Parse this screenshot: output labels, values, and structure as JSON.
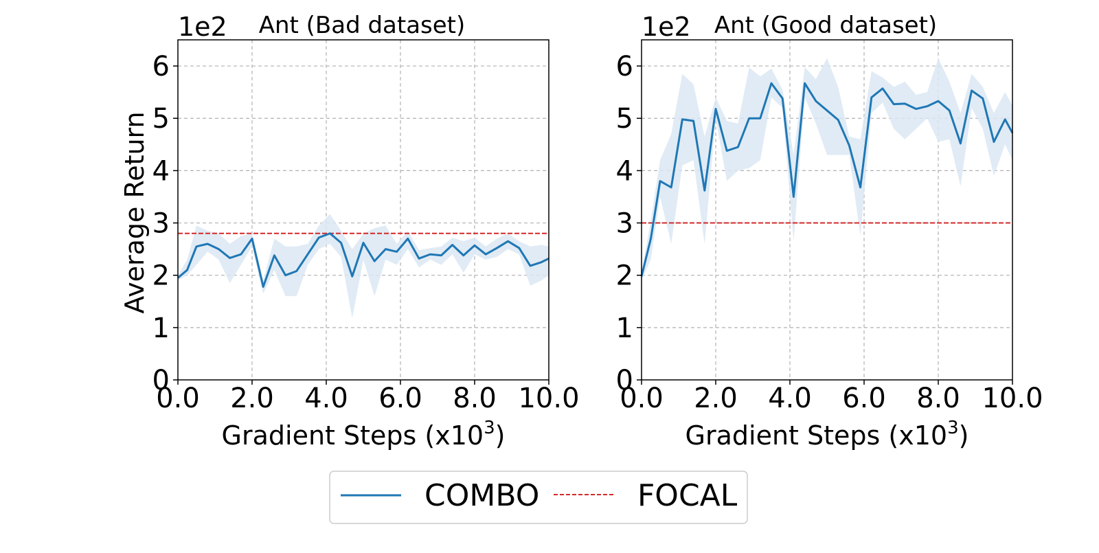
{
  "chart_data": [
    {
      "type": "line",
      "title": "Ant (Bad dataset)",
      "scale_label": "1e2",
      "xlabel": "Gradient Steps (x10",
      "xlabel_superscript": "3",
      "xlabel_suffix": ")",
      "ylabel": "Average Return",
      "xlim": [
        0,
        10
      ],
      "ylim": [
        0,
        6.5
      ],
      "xticks": [
        0,
        2,
        4,
        6,
        8,
        10
      ],
      "xtick_labels": [
        "0.0",
        "2.0",
        "4.0",
        "6.0",
        "8.0",
        "10.0"
      ],
      "yticks": [
        0,
        1,
        2,
        3,
        4,
        5,
        6
      ],
      "ytick_labels": [
        "0",
        "1",
        "2",
        "3",
        "4",
        "5",
        "6"
      ],
      "grid": true,
      "series": [
        {
          "name": "COMBO",
          "x": [
            0,
            0.25,
            0.5,
            0.8,
            1.1,
            1.4,
            1.7,
            2.0,
            2.3,
            2.6,
            2.9,
            3.2,
            3.5,
            3.8,
            4.1,
            4.4,
            4.7,
            5.0,
            5.3,
            5.6,
            5.9,
            6.2,
            6.5,
            6.8,
            7.1,
            7.4,
            7.7,
            8.0,
            8.3,
            8.6,
            8.9,
            9.2,
            9.5,
            9.8,
            10.0
          ],
          "y": [
            1.95,
            2.1,
            2.55,
            2.6,
            2.5,
            2.33,
            2.4,
            2.7,
            1.78,
            2.38,
            2.0,
            2.08,
            2.4,
            2.72,
            2.8,
            2.62,
            1.98,
            2.62,
            2.27,
            2.5,
            2.45,
            2.7,
            2.32,
            2.4,
            2.38,
            2.58,
            2.38,
            2.57,
            2.4,
            2.52,
            2.65,
            2.52,
            2.18,
            2.25,
            2.32
          ],
          "lower": [
            1.9,
            2.0,
            2.2,
            2.45,
            2.3,
            1.85,
            2.2,
            2.55,
            1.65,
            2.1,
            1.6,
            1.6,
            2.2,
            2.5,
            2.6,
            2.35,
            1.18,
            2.3,
            1.6,
            2.3,
            2.2,
            2.5,
            2.15,
            2.3,
            2.2,
            2.4,
            2.05,
            2.4,
            2.3,
            2.35,
            2.5,
            2.4,
            1.8,
            1.9,
            2.0
          ],
          "upper": [
            2.0,
            2.3,
            2.95,
            2.85,
            2.8,
            2.6,
            2.75,
            2.8,
            1.9,
            2.7,
            2.55,
            2.55,
            2.6,
            2.95,
            3.17,
            2.85,
            2.5,
            2.8,
            2.9,
            2.95,
            2.6,
            2.85,
            2.48,
            2.52,
            2.55,
            2.72,
            2.65,
            2.72,
            2.55,
            2.7,
            2.8,
            2.65,
            2.55,
            2.58,
            2.55
          ]
        },
        {
          "name": "FOCAL",
          "constant": 2.8
        }
      ]
    },
    {
      "type": "line",
      "title": "Ant (Good dataset)",
      "scale_label": "1e2",
      "xlabel": "Gradient Steps (x10",
      "xlabel_superscript": "3",
      "xlabel_suffix": ")",
      "ylabel": "",
      "xlim": [
        0,
        10
      ],
      "ylim": [
        0,
        6.5
      ],
      "xticks": [
        0,
        2,
        4,
        6,
        8,
        10
      ],
      "xtick_labels": [
        "0.0",
        "2.0",
        "4.0",
        "6.0",
        "8.0",
        "10.0"
      ],
      "yticks": [
        0,
        1,
        2,
        3,
        4,
        5,
        6
      ],
      "ytick_labels": [
        "0",
        "1",
        "2",
        "3",
        "4",
        "5",
        "6"
      ],
      "grid": true,
      "series": [
        {
          "name": "COMBO",
          "x": [
            0,
            0.25,
            0.5,
            0.8,
            1.1,
            1.4,
            1.7,
            2.0,
            2.3,
            2.6,
            2.9,
            3.2,
            3.5,
            3.8,
            4.1,
            4.4,
            4.7,
            5.0,
            5.3,
            5.6,
            5.9,
            6.2,
            6.5,
            6.8,
            7.1,
            7.4,
            7.7,
            8.0,
            8.3,
            8.6,
            8.9,
            9.2,
            9.5,
            9.8,
            10.0
          ],
          "y": [
            1.98,
            2.7,
            3.8,
            3.68,
            4.98,
            4.95,
            3.62,
            5.18,
            4.38,
            4.45,
            5.0,
            5.0,
            5.67,
            5.38,
            3.5,
            5.67,
            5.33,
            5.15,
            4.97,
            4.48,
            3.68,
            5.4,
            5.57,
            5.27,
            5.28,
            5.18,
            5.23,
            5.33,
            5.15,
            4.52,
            5.53,
            5.38,
            4.55,
            4.98,
            4.72
          ],
          "lower": [
            1.9,
            2.3,
            3.5,
            2.6,
            4.1,
            4.2,
            2.6,
            5.0,
            3.8,
            4.0,
            4.05,
            4.2,
            5.4,
            5.2,
            2.65,
            5.4,
            4.9,
            4.3,
            4.3,
            4.3,
            2.75,
            5.1,
            5.3,
            4.8,
            4.6,
            4.8,
            5.0,
            4.55,
            4.6,
            3.7,
            5.2,
            4.8,
            3.9,
            4.5,
            4.2
          ],
          "upper": [
            2.05,
            3.05,
            4.2,
            4.7,
            5.85,
            5.65,
            4.65,
            5.4,
            4.95,
            4.9,
            5.97,
            5.8,
            5.95,
            5.55,
            4.3,
            5.98,
            5.75,
            6.15,
            5.6,
            4.65,
            4.6,
            5.9,
            5.78,
            5.6,
            5.7,
            5.45,
            5.5,
            6.15,
            5.7,
            5.1,
            5.85,
            5.6,
            5.1,
            5.5,
            5.25
          ]
        },
        {
          "name": "FOCAL",
          "constant": 3.0
        }
      ]
    }
  ],
  "colors": {
    "combo": "#1f77b4",
    "combo_band": "#dbe8f3",
    "focal": "#d62728",
    "grid": "#b0b0b0"
  },
  "legend": {
    "placement": "bottom-center",
    "items": [
      {
        "label": "COMBO",
        "style": "solid"
      },
      {
        "label": "FOCAL",
        "style": "dashed"
      }
    ]
  }
}
